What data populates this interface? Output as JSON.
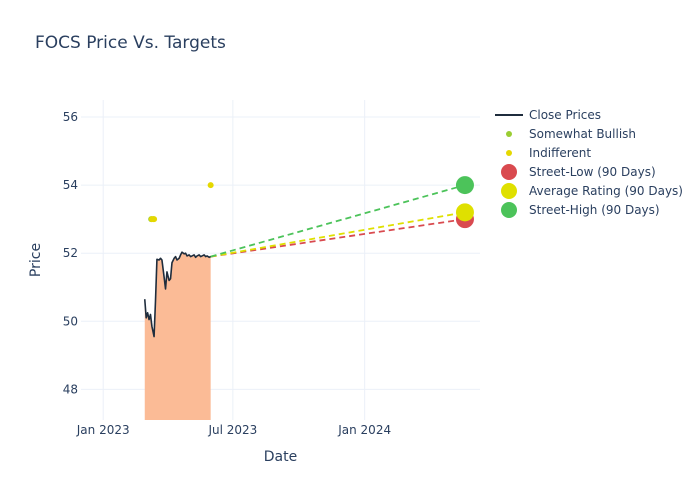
{
  "chart_data": {
    "type": "line",
    "title": "FOCS Price Vs. Targets",
    "xlabel": "Date",
    "ylabel": "Price",
    "xlim": [
      "2022-12-01",
      "2024-06-10"
    ],
    "ylim": [
      47.1,
      56.5
    ],
    "x_ticks": [
      {
        "date": "2023-01-01",
        "label": "Jan 2023"
      },
      {
        "date": "2023-07-01",
        "label": "Jul 2023"
      },
      {
        "date": "2024-01-01",
        "label": "Jan 2024"
      }
    ],
    "y_ticks": [
      48,
      50,
      52,
      54,
      56
    ],
    "series": [
      {
        "name": "Close Prices",
        "kind": "line",
        "color": "#1f2d3d",
        "fill_color": "#fbbb96",
        "x": [
          "2023-02-28",
          "2023-03-02",
          "2023-03-04",
          "2023-03-06",
          "2023-03-08",
          "2023-03-10",
          "2023-03-13",
          "2023-03-15",
          "2023-03-17",
          "2023-03-20",
          "2023-03-22",
          "2023-03-24",
          "2023-03-27",
          "2023-03-29",
          "2023-03-31",
          "2023-04-03",
          "2023-04-05",
          "2023-04-07",
          "2023-04-10",
          "2023-04-12",
          "2023-04-14",
          "2023-04-17",
          "2023-04-19",
          "2023-04-21",
          "2023-04-24",
          "2023-04-26",
          "2023-04-28",
          "2023-05-01",
          "2023-05-03",
          "2023-05-05",
          "2023-05-08",
          "2023-05-10",
          "2023-05-12",
          "2023-05-15",
          "2023-05-17",
          "2023-05-19",
          "2023-05-22",
          "2023-05-24",
          "2023-05-26",
          "2023-05-29",
          "2023-05-31"
        ],
        "y": [
          50.65,
          50.1,
          50.25,
          50.05,
          50.2,
          49.85,
          49.55,
          50.6,
          51.82,
          51.8,
          51.85,
          51.8,
          51.3,
          50.95,
          51.45,
          51.2,
          51.25,
          51.72,
          51.85,
          51.9,
          51.8,
          51.85,
          51.95,
          52.03,
          51.98,
          52.0,
          51.92,
          51.95,
          51.9,
          51.92,
          51.95,
          51.88,
          51.92,
          51.95,
          51.9,
          51.92,
          51.95,
          51.9,
          51.92,
          51.88,
          51.9
        ]
      },
      {
        "name": "Somewhat Bullish",
        "kind": "markers",
        "color": "#9acd32",
        "x": [
          "2023-03-09",
          "2023-03-12"
        ],
        "y": [
          53.0,
          53.0
        ]
      },
      {
        "name": "Indifferent",
        "kind": "markers",
        "color": "#e5d800",
        "x": [
          "2023-03-10",
          "2023-03-13",
          "2023-05-31"
        ],
        "y": [
          53.0,
          53.0,
          54.0
        ]
      },
      {
        "name": "Street-Low (90 Days)",
        "kind": "target",
        "color": "#d94a4f",
        "x": [
          "2023-05-31",
          "2024-05-20"
        ],
        "y": [
          51.9,
          53.0
        ]
      },
      {
        "name": "Average Rating (90 Days)",
        "kind": "target",
        "color": "#dfe000",
        "x": [
          "2023-05-31",
          "2024-05-20"
        ],
        "y": [
          51.9,
          53.2
        ]
      },
      {
        "name": "Street-High (90 Days)",
        "kind": "target",
        "color": "#4cc35a",
        "x": [
          "2023-05-31",
          "2024-05-20"
        ],
        "y": [
          51.9,
          54.0
        ]
      }
    ]
  }
}
